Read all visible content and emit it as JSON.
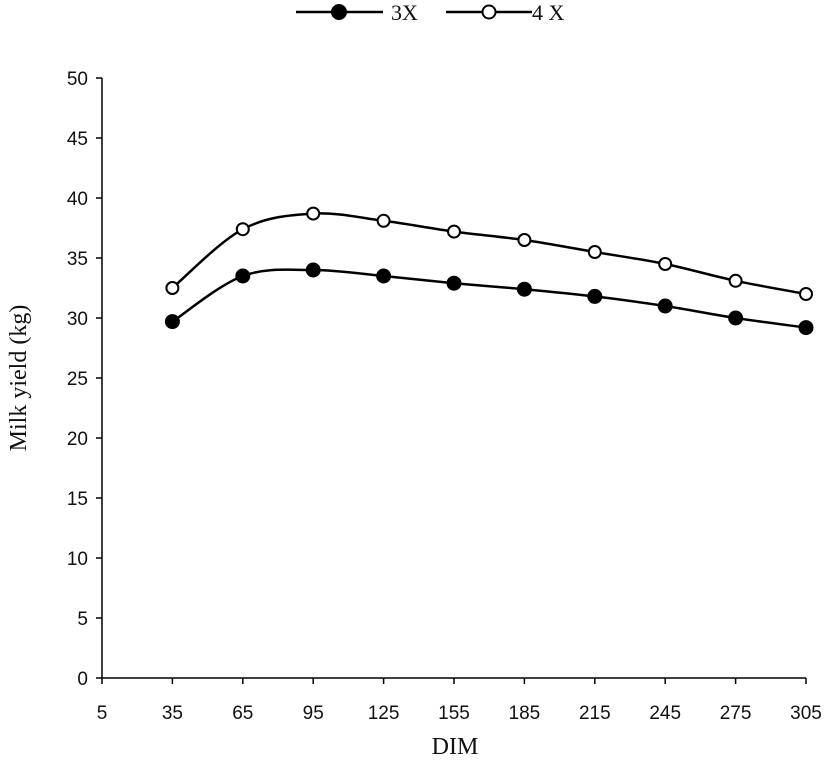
{
  "chart_data": {
    "type": "line",
    "xlabel": "DIM",
    "ylabel": "Milk yield (kg)",
    "x_ticks": [
      5,
      35,
      65,
      95,
      125,
      155,
      185,
      215,
      245,
      275,
      305
    ],
    "y_ticks": [
      0,
      5,
      10,
      15,
      20,
      25,
      30,
      35,
      40,
      45,
      50
    ],
    "xlim": [
      5,
      305
    ],
    "ylim": [
      0,
      50
    ],
    "grid": false,
    "legend_position": "top-center",
    "x": [
      35,
      65,
      95,
      125,
      155,
      185,
      215,
      245,
      275,
      305
    ],
    "series": [
      {
        "name": "3X",
        "marker": "filled-circle",
        "values": [
          29.7,
          33.5,
          34.0,
          33.5,
          32.9,
          32.4,
          31.8,
          31.0,
          30.0,
          29.2
        ]
      },
      {
        "name": "4 X",
        "marker": "open-circle",
        "values": [
          32.5,
          37.4,
          38.7,
          38.1,
          37.2,
          36.5,
          35.5,
          34.5,
          33.1,
          32.0
        ]
      }
    ]
  }
}
